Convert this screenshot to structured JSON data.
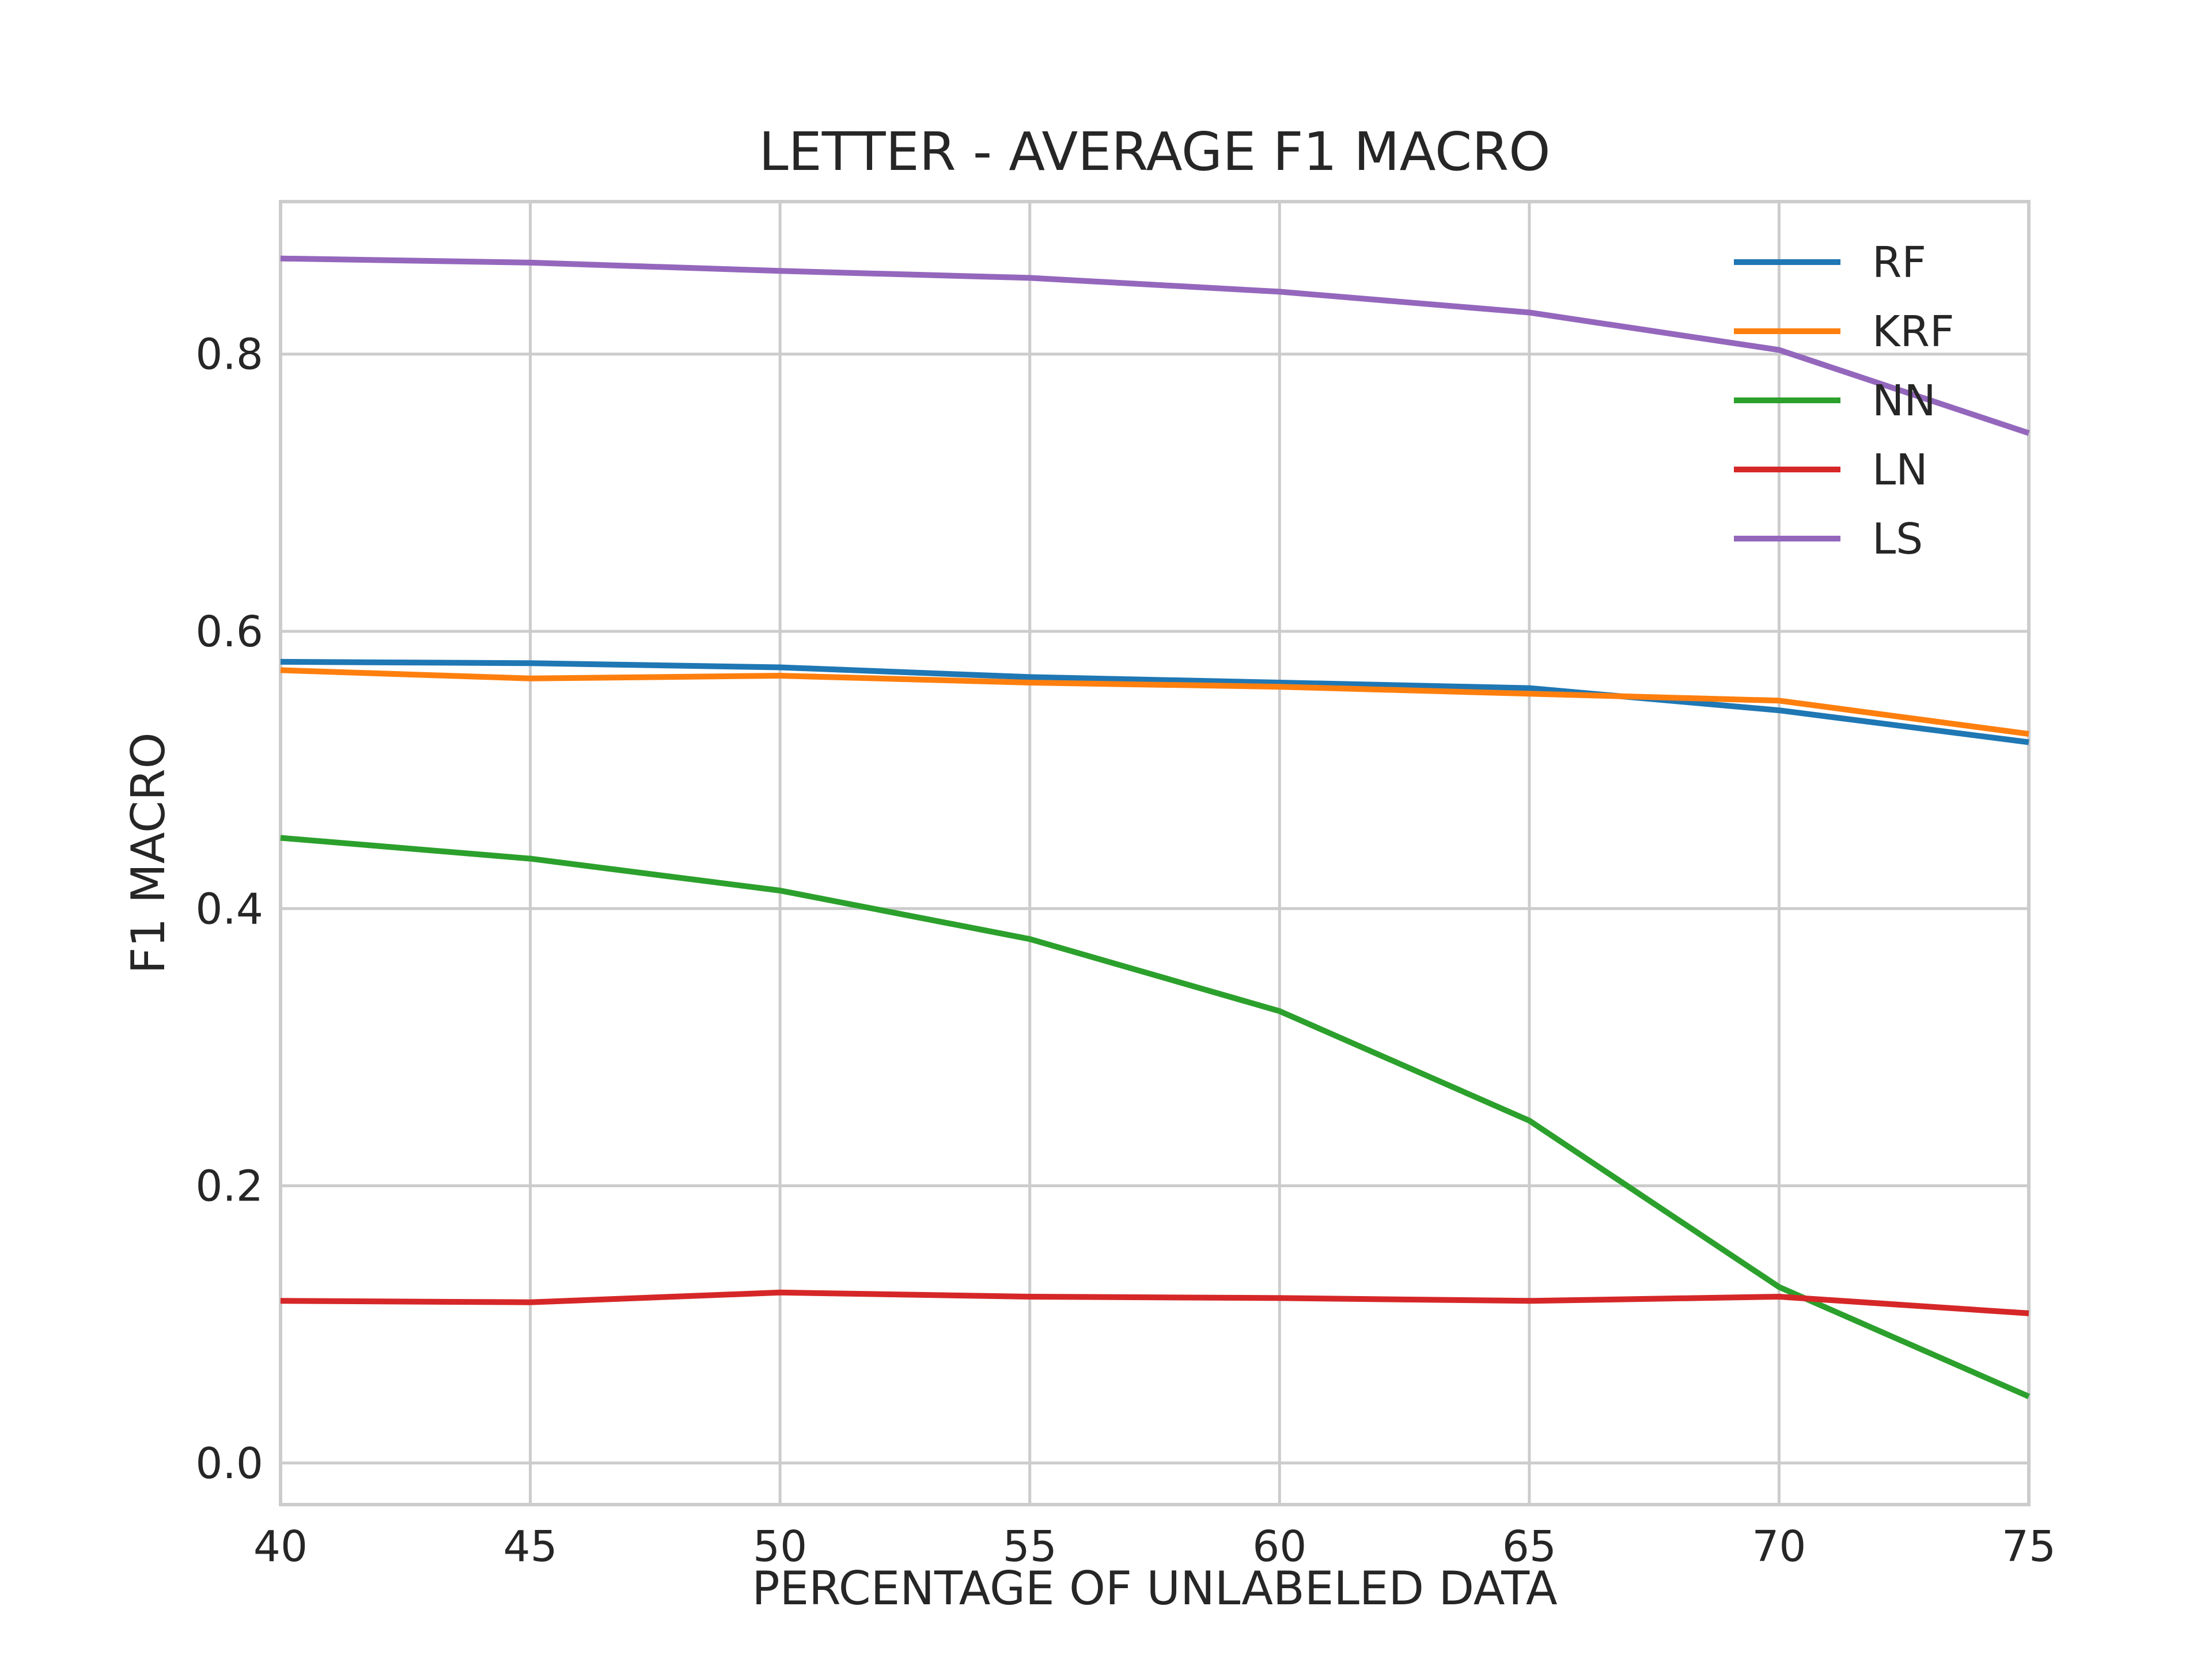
{
  "chart_data": {
    "type": "line",
    "title": "LETTER - AVERAGE F1 MACRO",
    "xlabel": "PERCENTAGE OF UNLABELED DATA",
    "ylabel": "F1 MACRO",
    "x": [
      40,
      45,
      50,
      55,
      60,
      65,
      70,
      75
    ],
    "xlim": [
      40,
      75
    ],
    "ylim": [
      -0.03,
      0.91
    ],
    "xticks": [
      40,
      45,
      50,
      55,
      60,
      65,
      70,
      75
    ],
    "yticks": [
      0.0,
      0.2,
      0.4,
      0.6,
      0.8
    ],
    "ytick_labels": [
      "0.0",
      "0.2",
      "0.4",
      "0.6",
      "0.8"
    ],
    "grid": true,
    "legend_position": "top-right",
    "series": [
      {
        "name": "RF",
        "color": "#1f77b4",
        "values": [
          0.578,
          0.577,
          0.574,
          0.567,
          0.563,
          0.559,
          0.543,
          0.52
        ]
      },
      {
        "name": "KRF",
        "color": "#ff7f0e",
        "values": [
          0.572,
          0.566,
          0.568,
          0.563,
          0.56,
          0.555,
          0.55,
          0.526
        ]
      },
      {
        "name": "NN",
        "color": "#2ca02c",
        "values": [
          0.451,
          0.436,
          0.413,
          0.378,
          0.326,
          0.247,
          0.127,
          0.048
        ]
      },
      {
        "name": "LN",
        "color": "#d62728",
        "values": [
          0.117,
          0.116,
          0.123,
          0.12,
          0.119,
          0.117,
          0.12,
          0.108
        ]
      },
      {
        "name": "LS",
        "color": "#9467bd",
        "values": [
          0.869,
          0.866,
          0.86,
          0.855,
          0.845,
          0.83,
          0.803,
          0.743
        ]
      }
    ]
  }
}
